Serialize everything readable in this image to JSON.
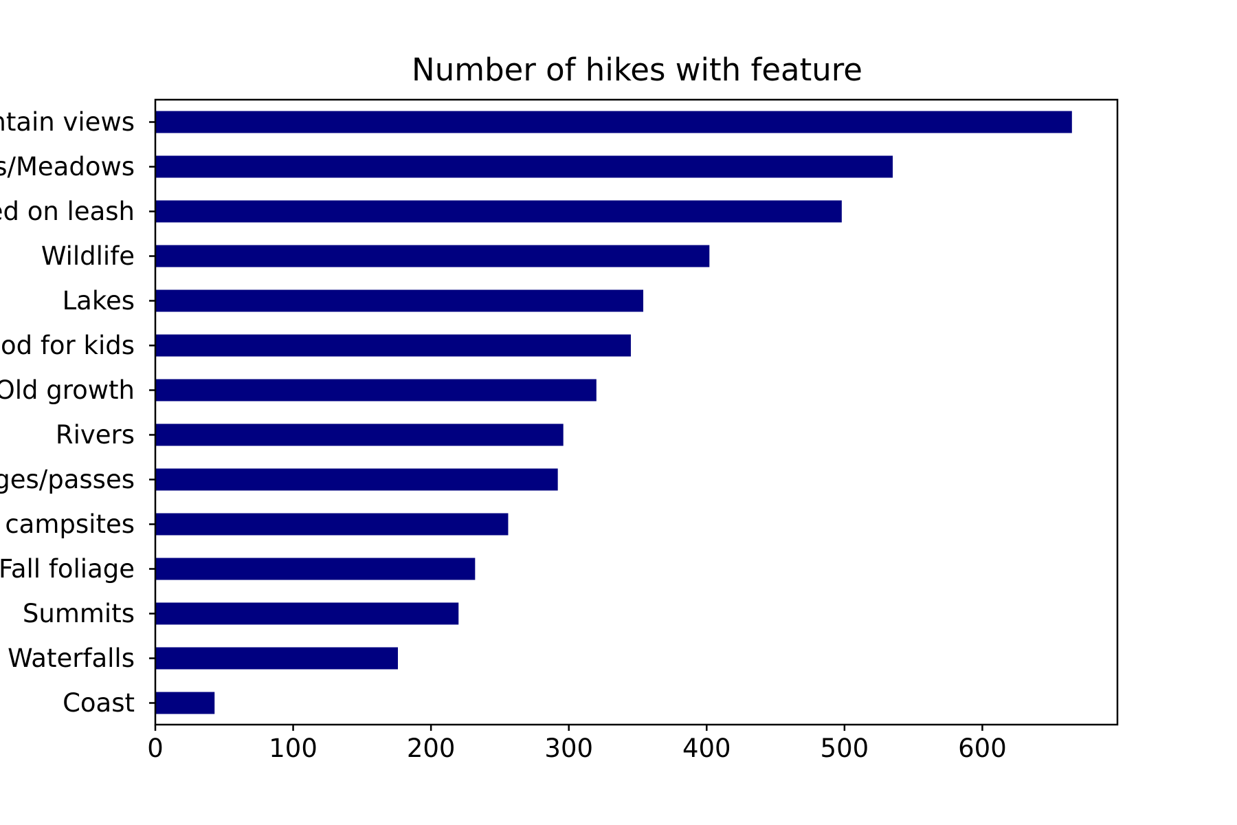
{
  "chart_data": {
    "type": "bar",
    "orientation": "horizontal",
    "title": "Number of hikes with feature",
    "xlabel": "",
    "ylabel": "",
    "categories": [
      "Mountain views",
      "Wildflowers/Meadows",
      "Dogs allowed on leash",
      "Wildlife",
      "Lakes",
      "Good for kids",
      "Old growth",
      "Rivers",
      "Ridges/passes",
      "Established campsites",
      "Fall foliage",
      "Summits",
      "Waterfalls",
      "Coast"
    ],
    "values": [
      665,
      535,
      498,
      402,
      354,
      345,
      320,
      296,
      292,
      256,
      232,
      220,
      176,
      43
    ],
    "xlim": [
      0,
      698
    ],
    "xticks": [
      0,
      100,
      200,
      300,
      400,
      500,
      600
    ],
    "grid": false,
    "legend": "none",
    "bar_color": "#000080"
  }
}
